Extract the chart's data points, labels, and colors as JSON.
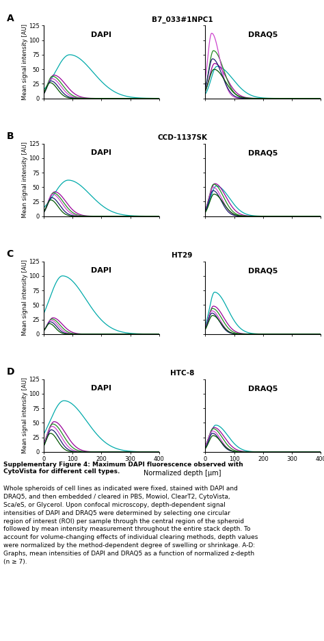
{
  "legend_labels": [
    "PBS",
    "Mowiol",
    "Clearᵀ²",
    "CytoVista",
    "Sca/eS",
    "Glycerol"
  ],
  "legend_colors_hex": [
    "#00aaaa",
    "#990099",
    "#228822",
    "#cc44cc",
    "#1a1a6e",
    "#005500"
  ],
  "row_titles": [
    "B7_033#1NPC1",
    "CCD-1137SK",
    "HT29",
    "HTC-8"
  ],
  "row_labels": [
    "A",
    "B",
    "C",
    "D"
  ],
  "col_labels": [
    "DAPI",
    "DRAQ5"
  ],
  "xlabel": "Normalized depth [μm]",
  "ylabel": "Mean signal intensity [AU]",
  "ylim": [
    0,
    125
  ],
  "xlim": [
    0,
    400
  ],
  "yticks": [
    0,
    25,
    50,
    75,
    100,
    125
  ],
  "xticks": [
    0,
    100,
    200,
    300,
    400
  ],
  "caption_bold": "Supplementary Figure 4: Maximum DAPI fluorescence observed with\nCytoVista for different cell types.",
  "caption_normal": "Whole spheroids of cell lines as indicated were fixed, stained with DAPI and\nDRAQ5, and then embedded / cleared in PBS, Mowiol, ClearT2, CytoVista,\nSca/eS, or Glycerol. Upon confocal microscopy, depth-dependent signal\nintensities of DAPI and DRAQ5 were determined by selecting one circular\nregion of interest (ROI) per sample through the central region of the spheroid\nfollowed by mean intensity measurement throughout the entire stack depth. To\naccount for volume-changing effects of individual clearing methods, depth values\nwere normalized by the method-dependent degree of swelling or shrinkage. A-D:\nGraphs, mean intensities of DAPI and DRAQ5 as a function of normalized z-depth\n(n ≥ 7)."
}
